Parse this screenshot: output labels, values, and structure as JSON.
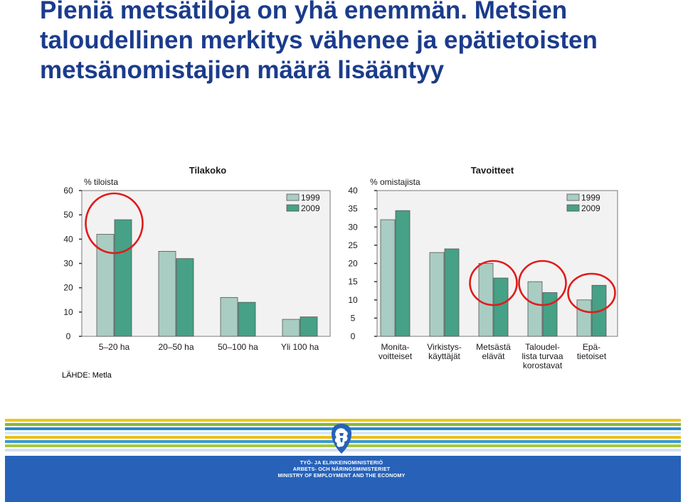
{
  "slide": {
    "title_lines": [
      "Pieniä metsätiloja on yhä enemmän. Metsien",
      "taloudellinen merkitys vähenee ja epätietoisten",
      "metsänomistajien määrä lisääntyy"
    ],
    "source": "LÄHDE: Metla"
  },
  "footer": {
    "ministry_lines": [
      "TYÖ- JA ELINKEINOMINISTERIÖ",
      "ARBETS- OCH NÄRINGSMINISTERIET",
      "MINISTRY OF EMPLOYMENT AND THE ECONOMY"
    ],
    "logo_icon": "finnish-lion-emblem-icon",
    "stripe_colors": [
      "#e8c81e",
      "#8ab838",
      "#2a8acb",
      "#d9e8f4",
      "#e9c01b",
      "#3c9bd4",
      "#a6c640",
      "#d1e2f1"
    ],
    "band_color": "#2762b8"
  },
  "colors": {
    "series_1999": "#a9cdc3",
    "series_2009": "#46a186",
    "highlight_circle": "#e11b1b",
    "plot_bg": "#f2f2f2"
  },
  "chart_data": [
    {
      "type": "bar",
      "title": "Tilakoko",
      "ylabel": "% tiloista",
      "categories": [
        "5–20 ha",
        "20–50 ha",
        "50–100 ha",
        "Yli 100 ha"
      ],
      "series": [
        {
          "name": "1999",
          "values": [
            42,
            35,
            16,
            7
          ]
        },
        {
          "name": "2009",
          "values": [
            48,
            32,
            14,
            8
          ]
        }
      ],
      "ylim": [
        0,
        60
      ],
      "yticks": [
        "0",
        "10",
        "20",
        "30",
        "40",
        "50",
        "60"
      ],
      "grid": false,
      "legend": "top-right",
      "highlighted_categories": [
        0
      ]
    },
    {
      "type": "bar",
      "title": "Tavoitteet",
      "ylabel": "% omistajista",
      "categories": [
        [
          "Monita-",
          "voitteiset"
        ],
        [
          "Virkistys-",
          "käyttäjät"
        ],
        [
          "Metsästä",
          "elävät"
        ],
        [
          "Taloudel-",
          "lista turvaa",
          "korostavat"
        ],
        [
          "Epä-",
          "tietoiset"
        ]
      ],
      "series": [
        {
          "name": "1999",
          "values": [
            32,
            23,
            20,
            15,
            10
          ]
        },
        {
          "name": "2009",
          "values": [
            34.5,
            24,
            16,
            12,
            14
          ]
        }
      ],
      "ylim": [
        0,
        40
      ],
      "yticks": [
        "0",
        "5",
        "10",
        "15",
        "20",
        "25",
        "30",
        "35",
        "40"
      ],
      "grid": false,
      "legend": "top-right",
      "highlighted_categories": [
        2,
        3,
        4
      ]
    }
  ]
}
